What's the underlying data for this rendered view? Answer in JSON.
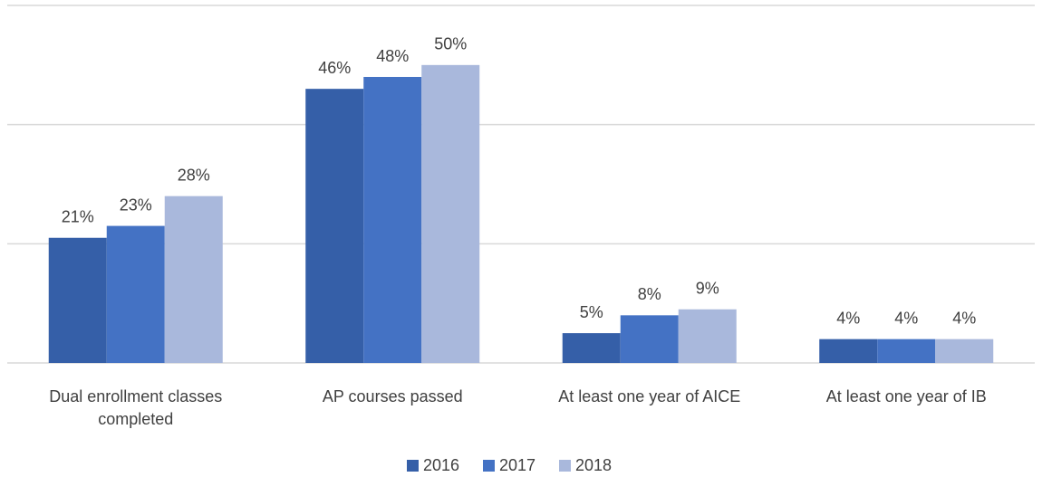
{
  "chart_data": {
    "type": "bar",
    "categories": [
      "Dual enrollment classes completed",
      "AP courses passed",
      "At least one year of AICE",
      "At least one year of IB"
    ],
    "series": [
      {
        "name": "2016",
        "color": "#355fa8",
        "values": [
          21,
          46,
          5,
          4
        ],
        "value_labels": [
          "21%",
          "46%",
          "5%",
          "4%"
        ]
      },
      {
        "name": "2017",
        "color": "#4472c4",
        "values": [
          23,
          48,
          8,
          4
        ],
        "value_labels": [
          "23%",
          "48%",
          "8%",
          "4%"
        ]
      },
      {
        "name": "2018",
        "color": "#a9b8dc",
        "values": [
          28,
          50,
          9,
          4
        ],
        "value_labels": [
          "28%",
          "50%",
          "9%",
          "4%"
        ]
      }
    ],
    "ylim": [
      0,
      60
    ],
    "yticks": [
      0,
      20,
      40,
      60
    ],
    "grid": true,
    "legend": "bottom"
  }
}
